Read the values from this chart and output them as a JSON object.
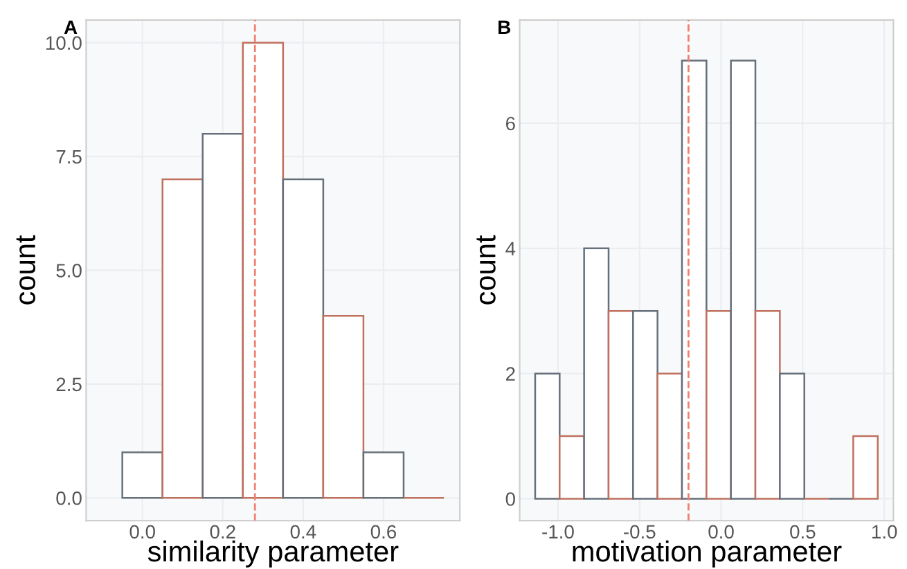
{
  "chart_data": [
    {
      "type": "histogram",
      "title": "A",
      "xlabel": "similarity parameter",
      "ylabel": "count",
      "bins": [
        -0.05,
        0.05,
        0.15,
        0.25,
        0.35,
        0.45,
        0.55,
        0.65,
        0.75
      ],
      "values": [
        1,
        7,
        8,
        10,
        7,
        4,
        1,
        0
      ],
      "colors": [
        "#66707a",
        "#c0705e",
        "#66707a",
        "#c0705e",
        "#66707a",
        "#c0705e",
        "#66707a",
        "#c0705e"
      ],
      "xlim": [
        -0.14,
        0.79
      ],
      "xticks": [
        {
          "value": 0,
          "label": "0.0"
        },
        0.2,
        0.4,
        0.6
      ],
      "ylim": [
        -0.5,
        10.5
      ],
      "yticks": [
        {
          "value": 0,
          "label": "0.0"
        },
        2.5,
        {
          "value": 5,
          "label": "5.0"
        },
        7.5,
        {
          "value": 10,
          "label": "10.0"
        }
      ],
      "ref_lines": [
        {
          "axis": "x",
          "value": 0.28,
          "color": "#f08070",
          "line_style": "dashed"
        }
      ],
      "grid": true
    },
    {
      "type": "histogram",
      "title": "B",
      "xlabel": "motivation parameter",
      "ylabel": "count",
      "bins": [
        -1.14,
        -0.99,
        -0.84,
        -0.69,
        -0.54,
        -0.39,
        -0.24,
        -0.09,
        0.06,
        0.21,
        0.36,
        0.51,
        0.66,
        0.81,
        0.96
      ],
      "values": [
        2,
        1,
        4,
        3,
        3,
        2,
        7,
        3,
        7,
        3,
        2,
        0,
        0,
        1
      ],
      "colors": [
        "#66707a",
        "#c0705e",
        "#66707a",
        "#c0705e",
        "#66707a",
        "#c0705e",
        "#66707a",
        "#c0705e",
        "#66707a",
        "#c0705e",
        "#66707a",
        "#c0705e",
        "#66707a",
        "#c0705e"
      ],
      "xlim": [
        -1.235,
        1.056
      ],
      "xticks": [
        {
          "value": -1,
          "label": "-1.0"
        },
        -0.5,
        {
          "value": 0,
          "label": "0.0"
        },
        0.5,
        {
          "value": 1,
          "label": "1.0"
        }
      ],
      "ylim": [
        -0.35,
        7.65
      ],
      "yticks": [
        0,
        2,
        4,
        6
      ],
      "ref_lines": [
        {
          "axis": "x",
          "value": -0.2,
          "color": "#f08070",
          "line_style": "dashed"
        }
      ],
      "grid": true
    }
  ]
}
